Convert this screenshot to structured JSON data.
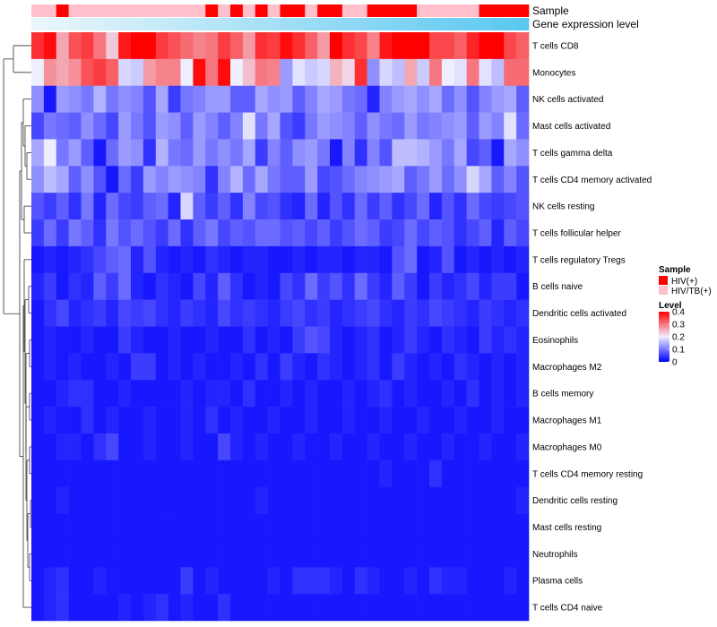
{
  "chart_data": {
    "type": "heatmap",
    "title": "",
    "n_samples": 40,
    "annotations": {
      "sample_label": "Sample",
      "gene_label": "Gene expression level",
      "sample_groups": [
        "HIV/TB(+)",
        "HIV/TB(+)",
        "HIV(+)",
        "HIV/TB(+)",
        "HIV/TB(+)",
        "HIV/TB(+)",
        "HIV/TB(+)",
        "HIV/TB(+)",
        "HIV/TB(+)",
        "HIV/TB(+)",
        "HIV/TB(+)",
        "HIV/TB(+)",
        "HIV/TB(+)",
        "HIV/TB(+)",
        "HIV(+)",
        "HIV/TB(+)",
        "HIV(+)",
        "HIV/TB(+)",
        "HIV(+)",
        "HIV/TB(+)",
        "HIV(+)",
        "HIV(+)",
        "HIV/TB(+)",
        "HIV(+)",
        "HIV(+)",
        "HIV/TB(+)",
        "HIV/TB(+)",
        "HIV(+)",
        "HIV(+)",
        "HIV(+)",
        "HIV(+)",
        "HIV/TB(+)",
        "HIV/TB(+)",
        "HIV/TB(+)",
        "HIV/TB(+)",
        "HIV/TB(+)",
        "HIV(+)",
        "HIV(+)",
        "HIV(+)",
        "HIV(+)"
      ],
      "gene_level_gradient": [
        "#eaf6fb",
        "#5bc8f0"
      ]
    },
    "rows": [
      {
        "label": "T cells CD8",
        "values": [
          0.36,
          0.39,
          0.26,
          0.33,
          0.35,
          0.3,
          0.23,
          0.38,
          0.4,
          0.4,
          0.35,
          0.33,
          0.31,
          0.29,
          0.3,
          0.35,
          0.32,
          0.27,
          0.36,
          0.35,
          0.39,
          0.36,
          0.32,
          0.27,
          0.4,
          0.36,
          0.34,
          0.29,
          0.38,
          0.4,
          0.4,
          0.4,
          0.34,
          0.34,
          0.32,
          0.37,
          0.4,
          0.4,
          0.34,
          0.32
        ]
      },
      {
        "label": "Monocytes",
        "values": [
          0.2,
          0.28,
          0.26,
          0.28,
          0.33,
          0.35,
          0.32,
          0.18,
          0.17,
          0.27,
          0.29,
          0.29,
          0.2,
          0.39,
          0.3,
          0.39,
          0.2,
          0.24,
          0.3,
          0.29,
          0.13,
          0.19,
          0.17,
          0.18,
          0.25,
          0.22,
          0.36,
          0.12,
          0.18,
          0.16,
          0.26,
          0.17,
          0.3,
          0.2,
          0.19,
          0.3,
          0.19,
          0.16,
          0.31,
          0.31
        ]
      },
      {
        "label": "NK cells activated",
        "values": [
          0.12,
          0.02,
          0.13,
          0.12,
          0.1,
          0.15,
          0.1,
          0.12,
          0.11,
          0.07,
          0.14,
          0.05,
          0.1,
          0.11,
          0.13,
          0.13,
          0.08,
          0.08,
          0.14,
          0.12,
          0.13,
          0.08,
          0.11,
          0.14,
          0.13,
          0.1,
          0.09,
          0.03,
          0.11,
          0.13,
          0.14,
          0.12,
          0.14,
          0.09,
          0.12,
          0.07,
          0.11,
          0.13,
          0.14,
          0.08
        ]
      },
      {
        "label": "Mast cells activated",
        "values": [
          0.06,
          0.1,
          0.09,
          0.08,
          0.12,
          0.09,
          0.06,
          0.13,
          0.1,
          0.07,
          0.13,
          0.12,
          0.08,
          0.13,
          0.11,
          0.08,
          0.11,
          0.19,
          0.1,
          0.14,
          0.07,
          0.05,
          0.1,
          0.13,
          0.12,
          0.11,
          0.08,
          0.12,
          0.1,
          0.09,
          0.13,
          0.1,
          0.11,
          0.12,
          0.13,
          0.08,
          0.13,
          0.11,
          0.19,
          0.09
        ]
      },
      {
        "label": "T cells gamma delta",
        "values": [
          0.14,
          0.2,
          0.1,
          0.13,
          0.08,
          0.02,
          0.09,
          0.13,
          0.12,
          0.04,
          0.15,
          0.1,
          0.09,
          0.13,
          0.1,
          0.12,
          0.1,
          0.14,
          0.05,
          0.11,
          0.08,
          0.12,
          0.13,
          0.1,
          0.02,
          0.11,
          0.04,
          0.11,
          0.07,
          0.16,
          0.16,
          0.15,
          0.13,
          0.1,
          0.14,
          0.06,
          0.08,
          0.02,
          0.14,
          0.12
        ]
      },
      {
        "label": "T cells CD4 memory activated",
        "values": [
          0.12,
          0.16,
          0.14,
          0.08,
          0.12,
          0.07,
          0.02,
          0.09,
          0.05,
          0.13,
          0.11,
          0.13,
          0.12,
          0.11,
          0.04,
          0.11,
          0.15,
          0.09,
          0.14,
          0.1,
          0.08,
          0.08,
          0.13,
          0.06,
          0.07,
          0.09,
          0.11,
          0.12,
          0.13,
          0.14,
          0.08,
          0.1,
          0.13,
          0.09,
          0.12,
          0.18,
          0.14,
          0.08,
          0.11,
          0.07
        ]
      },
      {
        "label": "NK cells resting",
        "values": [
          0.07,
          0.05,
          0.08,
          0.04,
          0.1,
          0.03,
          0.09,
          0.06,
          0.05,
          0.08,
          0.09,
          0.03,
          0.18,
          0.08,
          0.05,
          0.08,
          0.04,
          0.11,
          0.06,
          0.07,
          0.04,
          0.03,
          0.09,
          0.03,
          0.07,
          0.04,
          0.09,
          0.05,
          0.08,
          0.04,
          0.06,
          0.09,
          0.03,
          0.07,
          0.04,
          0.09,
          0.06,
          0.05,
          0.06,
          0.07
        ]
      },
      {
        "label": "T cells follicular helper",
        "values": [
          0.05,
          0.09,
          0.05,
          0.1,
          0.08,
          0.04,
          0.1,
          0.07,
          0.09,
          0.07,
          0.05,
          0.09,
          0.04,
          0.08,
          0.1,
          0.06,
          0.08,
          0.07,
          0.09,
          0.09,
          0.07,
          0.08,
          0.06,
          0.08,
          0.05,
          0.07,
          0.09,
          0.08,
          0.05,
          0.06,
          0.09,
          0.06,
          0.08,
          0.07,
          0.04,
          0.06,
          0.08,
          0.03,
          0.08,
          0.06
        ]
      },
      {
        "label": "T cells regulatory  Tregs",
        "values": [
          0.02,
          0.03,
          0.02,
          0.03,
          0.04,
          0.06,
          0.08,
          0.09,
          0.03,
          0.07,
          0.03,
          0.02,
          0.03,
          0.02,
          0.04,
          0.03,
          0.02,
          0.03,
          0.03,
          0.02,
          0.02,
          0.03,
          0.02,
          0.03,
          0.03,
          0.02,
          0.03,
          0.03,
          0.02,
          0.07,
          0.09,
          0.02,
          0.03,
          0.07,
          0.02,
          0.03,
          0.02,
          0.03,
          0.02,
          0.03
        ]
      },
      {
        "label": "B cells naive",
        "values": [
          0.03,
          0.05,
          0.02,
          0.04,
          0.03,
          0.08,
          0.05,
          0.09,
          0.03,
          0.02,
          0.04,
          0.03,
          0.02,
          0.06,
          0.03,
          0.08,
          0.04,
          0.02,
          0.03,
          0.02,
          0.06,
          0.04,
          0.09,
          0.05,
          0.07,
          0.04,
          0.09,
          0.05,
          0.03,
          0.08,
          0.05,
          0.02,
          0.05,
          0.03,
          0.04,
          0.06,
          0.03,
          0.05,
          0.05,
          0.02
        ]
      },
      {
        "label": "Dendritic cells activated",
        "values": [
          0.02,
          0.04,
          0.06,
          0.03,
          0.04,
          0.05,
          0.03,
          0.06,
          0.05,
          0.06,
          0.04,
          0.03,
          0.05,
          0.04,
          0.03,
          0.06,
          0.04,
          0.05,
          0.04,
          0.03,
          0.05,
          0.06,
          0.04,
          0.05,
          0.03,
          0.04,
          0.05,
          0.06,
          0.04,
          0.03,
          0.05,
          0.04,
          0.06,
          0.05,
          0.04,
          0.03,
          0.05,
          0.04,
          0.03,
          0.04
        ]
      },
      {
        "label": "Eosinophils",
        "values": [
          0.02,
          0.03,
          0.02,
          0.02,
          0.03,
          0.02,
          0.02,
          0.05,
          0.03,
          0.02,
          0.02,
          0.03,
          0.02,
          0.02,
          0.03,
          0.02,
          0.02,
          0.04,
          0.02,
          0.03,
          0.02,
          0.05,
          0.07,
          0.06,
          0.03,
          0.02,
          0.03,
          0.04,
          0.02,
          0.03,
          0.05,
          0.03,
          0.02,
          0.04,
          0.03,
          0.02,
          0.05,
          0.03,
          0.04,
          0.03
        ]
      },
      {
        "label": "Macrophages M2",
        "values": [
          0.02,
          0.03,
          0.02,
          0.03,
          0.02,
          0.02,
          0.03,
          0.02,
          0.05,
          0.05,
          0.02,
          0.03,
          0.02,
          0.03,
          0.02,
          0.02,
          0.03,
          0.02,
          0.04,
          0.02,
          0.05,
          0.03,
          0.02,
          0.04,
          0.03,
          0.02,
          0.03,
          0.04,
          0.02,
          0.05,
          0.03,
          0.02,
          0.03,
          0.02,
          0.04,
          0.03,
          0.02,
          0.03,
          0.02,
          0.03
        ]
      },
      {
        "label": "B cells memory",
        "values": [
          0.02,
          0.02,
          0.03,
          0.04,
          0.04,
          0.02,
          0.02,
          0.03,
          0.02,
          0.02,
          0.02,
          0.02,
          0.03,
          0.02,
          0.03,
          0.03,
          0.02,
          0.04,
          0.02,
          0.02,
          0.03,
          0.02,
          0.03,
          0.02,
          0.02,
          0.03,
          0.02,
          0.03,
          0.04,
          0.02,
          0.03,
          0.02,
          0.02,
          0.03,
          0.02,
          0.04,
          0.02,
          0.03,
          0.02,
          0.03
        ]
      },
      {
        "label": "Macrophages M1",
        "values": [
          0.02,
          0.03,
          0.02,
          0.02,
          0.04,
          0.02,
          0.03,
          0.02,
          0.02,
          0.03,
          0.02,
          0.02,
          0.03,
          0.02,
          0.04,
          0.02,
          0.03,
          0.02,
          0.02,
          0.03,
          0.02,
          0.02,
          0.03,
          0.02,
          0.02,
          0.03,
          0.02,
          0.02,
          0.03,
          0.02,
          0.02,
          0.03,
          0.02,
          0.02,
          0.03,
          0.02,
          0.02,
          0.03,
          0.02,
          0.02
        ]
      },
      {
        "label": "Macrophages M0",
        "values": [
          0.02,
          0.02,
          0.03,
          0.03,
          0.02,
          0.04,
          0.06,
          0.02,
          0.02,
          0.03,
          0.02,
          0.02,
          0.03,
          0.02,
          0.02,
          0.06,
          0.03,
          0.02,
          0.03,
          0.02,
          0.02,
          0.03,
          0.02,
          0.02,
          0.03,
          0.02,
          0.02,
          0.03,
          0.02,
          0.02,
          0.03,
          0.02,
          0.02,
          0.03,
          0.02,
          0.02,
          0.03,
          0.02,
          0.02,
          0.03
        ]
      },
      {
        "label": "T cells CD4 memory resting",
        "values": [
          0.02,
          0.02,
          0.02,
          0.02,
          0.02,
          0.02,
          0.02,
          0.02,
          0.02,
          0.02,
          0.02,
          0.02,
          0.02,
          0.02,
          0.02,
          0.02,
          0.02,
          0.02,
          0.02,
          0.02,
          0.02,
          0.02,
          0.02,
          0.02,
          0.02,
          0.02,
          0.02,
          0.02,
          0.03,
          0.02,
          0.02,
          0.02,
          0.04,
          0.02,
          0.02,
          0.02,
          0.02,
          0.02,
          0.02,
          0.02
        ]
      },
      {
        "label": "Dendritic cells resting",
        "values": [
          0.02,
          0.02,
          0.03,
          0.02,
          0.02,
          0.02,
          0.02,
          0.02,
          0.02,
          0.02,
          0.02,
          0.02,
          0.02,
          0.02,
          0.02,
          0.02,
          0.02,
          0.02,
          0.03,
          0.02,
          0.02,
          0.02,
          0.02,
          0.02,
          0.02,
          0.02,
          0.02,
          0.02,
          0.02,
          0.02,
          0.02,
          0.02,
          0.02,
          0.02,
          0.02,
          0.02,
          0.02,
          0.02,
          0.02,
          0.03
        ]
      },
      {
        "label": "Mast cells resting",
        "values": [
          0.02,
          0.02,
          0.02,
          0.02,
          0.02,
          0.02,
          0.02,
          0.02,
          0.02,
          0.02,
          0.02,
          0.02,
          0.02,
          0.02,
          0.02,
          0.02,
          0.02,
          0.02,
          0.02,
          0.02,
          0.02,
          0.02,
          0.02,
          0.02,
          0.02,
          0.02,
          0.02,
          0.02,
          0.02,
          0.02,
          0.02,
          0.02,
          0.02,
          0.02,
          0.02,
          0.02,
          0.02,
          0.02,
          0.02,
          0.02
        ]
      },
      {
        "label": "Neutrophils",
        "values": [
          0.02,
          0.02,
          0.02,
          0.02,
          0.02,
          0.02,
          0.02,
          0.02,
          0.02,
          0.02,
          0.02,
          0.02,
          0.02,
          0.02,
          0.02,
          0.02,
          0.02,
          0.02,
          0.02,
          0.02,
          0.02,
          0.02,
          0.02,
          0.02,
          0.02,
          0.02,
          0.02,
          0.02,
          0.02,
          0.02,
          0.02,
          0.02,
          0.02,
          0.02,
          0.02,
          0.02,
          0.02,
          0.02,
          0.02,
          0.02
        ]
      },
      {
        "label": "Plasma cells",
        "values": [
          0.02,
          0.03,
          0.04,
          0.02,
          0.02,
          0.03,
          0.02,
          0.02,
          0.02,
          0.02,
          0.02,
          0.02,
          0.05,
          0.02,
          0.03,
          0.02,
          0.02,
          0.02,
          0.02,
          0.03,
          0.02,
          0.04,
          0.04,
          0.04,
          0.03,
          0.02,
          0.04,
          0.03,
          0.02,
          0.02,
          0.03,
          0.02,
          0.04,
          0.03,
          0.03,
          0.02,
          0.02,
          0.02,
          0.03,
          0.02
        ]
      },
      {
        "label": "T cells CD4 naive",
        "values": [
          0.02,
          0.03,
          0.04,
          0.02,
          0.02,
          0.02,
          0.02,
          0.03,
          0.02,
          0.03,
          0.04,
          0.02,
          0.03,
          0.02,
          0.02,
          0.04,
          0.02,
          0.02,
          0.02,
          0.02,
          0.02,
          0.02,
          0.02,
          0.02,
          0.02,
          0.02,
          0.02,
          0.02,
          0.02,
          0.02,
          0.02,
          0.02,
          0.02,
          0.02,
          0.02,
          0.02,
          0.02,
          0.02,
          0.02,
          0.02
        ]
      }
    ],
    "color_scale": {
      "min": 0,
      "max": 0.4,
      "stops": [
        {
          "value": 0,
          "color": "#0000ff"
        },
        {
          "value": 0.2,
          "color": "#eeeeff"
        },
        {
          "value": 0.4,
          "color": "#ff0000"
        }
      ]
    },
    "legend": {
      "placement": "right",
      "sample_title": "Sample",
      "sample_entries": [
        {
          "label": "HIV(+)",
          "color": "#ff0000"
        },
        {
          "label": "HIV/TB(+)",
          "color": "#ffc0cb"
        }
      ],
      "level_title": "Level",
      "level_ticks": [
        "0.4",
        "0.3",
        "0.2",
        "0.1",
        "0"
      ],
      "level_tick_values": [
        0.4,
        0.3,
        0.2,
        0.1,
        0
      ]
    },
    "dendrogram": "rows"
  }
}
